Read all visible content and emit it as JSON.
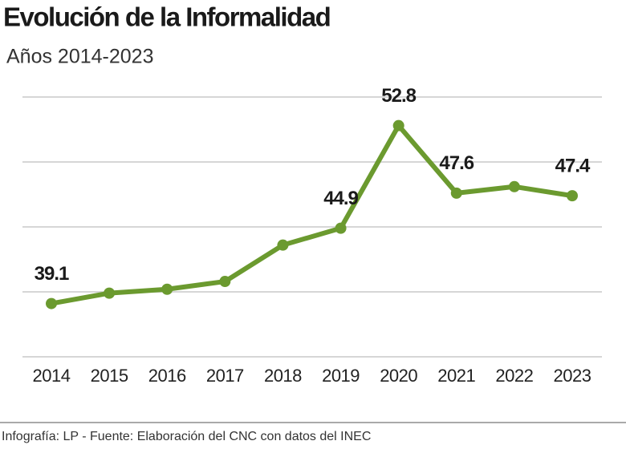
{
  "chart_data": {
    "type": "line",
    "title": "Evolución de la Informalidad",
    "subtitle": "Años 2014-2023",
    "source": "Infografía: LP - Fuente: Elaboración del CNC con datos del INEC",
    "categories": [
      "2014",
      "2015",
      "2016",
      "2017",
      "2018",
      "2019",
      "2020",
      "2021",
      "2022",
      "2023"
    ],
    "series": [
      {
        "name": "Informalidad",
        "color": "#6b9a2f",
        "values": [
          39.1,
          39.9,
          40.2,
          40.8,
          43.6,
          44.9,
          52.8,
          47.6,
          48.1,
          47.4
        ],
        "value_labels": [
          "39.1",
          null,
          null,
          null,
          null,
          "44.9",
          "52.8",
          "47.6",
          null,
          "47.4"
        ]
      }
    ],
    "ylim": [
      35,
      55
    ],
    "yticks": [
      35,
      40,
      45,
      50,
      55
    ],
    "grid": true
  }
}
